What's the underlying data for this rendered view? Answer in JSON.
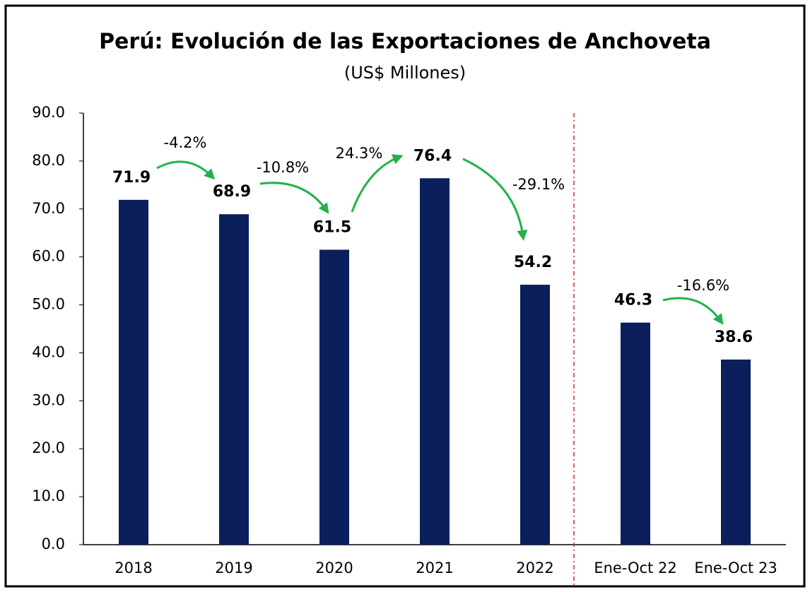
{
  "chart_data": {
    "type": "bar",
    "title": "Perú: Evolución de las Exportaciones de Anchoveta",
    "subtitle": "(US$ Millones)",
    "categories": [
      "2018",
      "2019",
      "2020",
      "2021",
      "2022",
      "Ene-Oct 22",
      "Ene-Oct 23"
    ],
    "values": [
      71.9,
      68.9,
      61.5,
      76.4,
      54.2,
      46.3,
      38.6
    ],
    "color": "#0a1f5c",
    "ylim": [
      0,
      90
    ],
    "yticks": [
      {
        "value": 0,
        "label": "0.0"
      },
      {
        "value": 10,
        "label": "10.0"
      },
      {
        "value": 20,
        "label": "20.0"
      },
      {
        "value": 30,
        "label": "30.0"
      },
      {
        "value": 40,
        "label": "40.0"
      },
      {
        "value": 50,
        "label": "50.0"
      },
      {
        "value": 60,
        "label": "60.0"
      },
      {
        "value": 70,
        "label": "70.0"
      },
      {
        "value": 80,
        "label": "80.0"
      },
      {
        "value": 90,
        "label": "90.0"
      }
    ],
    "annotations": [
      "-4.2%",
      "-10.8%",
      "24.3%",
      "-29.1%",
      "-16.6%"
    ]
  }
}
